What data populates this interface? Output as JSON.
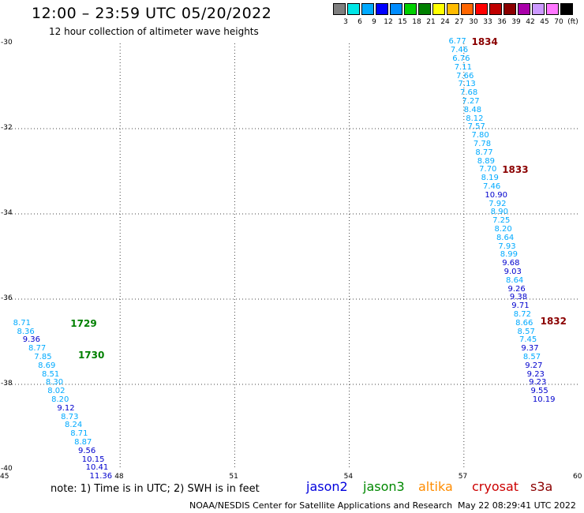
{
  "title": "12:00 – 23:59 UTC 05/20/2022",
  "subtitle": "12 hour collection of altimeter wave heights",
  "legend": {
    "colors": [
      "#7f7f7f",
      "#00e6e6",
      "#00aaff",
      "#0000ff",
      "#008cff",
      "#00d000",
      "#008000",
      "#ffff00",
      "#ffbb00",
      "#ff6600",
      "#ff0000",
      "#c00000",
      "#8b0000",
      "#aa00aa",
      "#cc99ff",
      "#ff77ff",
      "#000000"
    ],
    "labels": [
      "3",
      "6",
      "9",
      "12",
      "15",
      "18",
      "21",
      "24",
      "27",
      "30",
      "33",
      "36",
      "39",
      "42",
      "45",
      "70",
      "(ft)"
    ]
  },
  "axes": {
    "x_ticks": [
      "45",
      "48",
      "51",
      "54",
      "57",
      "60"
    ],
    "y_ticks": [
      "-30",
      "-32",
      "-34",
      "-36",
      "-38",
      "-40"
    ],
    "xlim": [
      45,
      60
    ],
    "ylim": [
      -40,
      -30
    ]
  },
  "chart_data": {
    "type": "scatter",
    "x_range": [
      45,
      60
    ],
    "y_range": [
      -40,
      -30
    ],
    "series": [
      {
        "name": "jason3",
        "color": "#008000",
        "track_labels": [
          {
            "text": "1729",
            "lon": 46.7,
            "lat": -36.55
          },
          {
            "text": "1730",
            "lon": 46.9,
            "lat": -37.3
          }
        ],
        "points": [
          {
            "lon": 45.2,
            "lat": -36.55,
            "v": "8.71",
            "c": "#00aaff"
          },
          {
            "lon": 45.3,
            "lat": -36.75,
            "v": "8.36",
            "c": "#00aaff"
          },
          {
            "lon": 45.45,
            "lat": -36.95,
            "v": "9.36",
            "c": "#0000cd"
          },
          {
            "lon": 45.6,
            "lat": -37.15,
            "v": "8.77",
            "c": "#00aaff"
          },
          {
            "lon": 45.75,
            "lat": -37.35,
            "v": "7.85",
            "c": "#00aaff"
          },
          {
            "lon": 45.85,
            "lat": -37.55,
            "v": "8.69",
            "c": "#00aaff"
          },
          {
            "lon": 45.95,
            "lat": -37.75,
            "v": "8.51",
            "c": "#00aaff"
          },
          {
            "lon": 46.05,
            "lat": -37.95,
            "v": "8.30",
            "c": "#00aaff"
          },
          {
            "lon": 46.1,
            "lat": -38.15,
            "v": "8.02",
            "c": "#00aaff"
          },
          {
            "lon": 46.2,
            "lat": -38.35,
            "v": "8.20",
            "c": "#00aaff"
          },
          {
            "lon": 46.35,
            "lat": -38.55,
            "v": "9.12",
            "c": "#0000cd"
          },
          {
            "lon": 46.45,
            "lat": -38.75,
            "v": "8.73",
            "c": "#00aaff"
          },
          {
            "lon": 46.55,
            "lat": -38.95,
            "v": "8.24",
            "c": "#00aaff"
          },
          {
            "lon": 46.7,
            "lat": -39.15,
            "v": "8.71",
            "c": "#00aaff"
          },
          {
            "lon": 46.8,
            "lat": -39.35,
            "v": "8.87",
            "c": "#00aaff"
          },
          {
            "lon": 46.9,
            "lat": -39.55,
            "v": "9.56",
            "c": "#0000cd"
          },
          {
            "lon": 47.0,
            "lat": -39.75,
            "v": "10.15",
            "c": "#0000cd"
          },
          {
            "lon": 47.1,
            "lat": -39.95,
            "v": "10.41",
            "c": "#0000cd"
          },
          {
            "lon": 47.2,
            "lat": -40.15,
            "v": "11.36",
            "c": "#0000cd"
          }
        ]
      },
      {
        "name": "cryosat",
        "color": "#8b0000",
        "track_labels": [
          {
            "text": "1834",
            "lon": 57.2,
            "lat": -29.95
          },
          {
            "text": "1833",
            "lon": 58.0,
            "lat": -32.95
          },
          {
            "text": "1832",
            "lon": 59.0,
            "lat": -36.5
          }
        ],
        "points": [
          {
            "lon": 56.6,
            "lat": -29.95,
            "v": "6.77",
            "c": "#00aaff"
          },
          {
            "lon": 56.65,
            "lat": -30.15,
            "v": "7.46",
            "c": "#00aaff"
          },
          {
            "lon": 56.7,
            "lat": -30.35,
            "v": "6.76",
            "c": "#00aaff"
          },
          {
            "lon": 56.75,
            "lat": -30.55,
            "v": "7.11",
            "c": "#00aaff"
          },
          {
            "lon": 56.8,
            "lat": -30.75,
            "v": "7.66",
            "c": "#00aaff"
          },
          {
            "lon": 56.85,
            "lat": -30.95,
            "v": "7.13",
            "c": "#00aaff"
          },
          {
            "lon": 56.9,
            "lat": -31.15,
            "v": "7.68",
            "c": "#00aaff"
          },
          {
            "lon": 56.95,
            "lat": -31.35,
            "v": "7.27",
            "c": "#00aaff"
          },
          {
            "lon": 57.0,
            "lat": -31.55,
            "v": "8.48",
            "c": "#00aaff"
          },
          {
            "lon": 57.05,
            "lat": -31.75,
            "v": "8.12",
            "c": "#00aaff"
          },
          {
            "lon": 57.1,
            "lat": -31.95,
            "v": "7.57",
            "c": "#00aaff"
          },
          {
            "lon": 57.2,
            "lat": -32.15,
            "v": "7.80",
            "c": "#00aaff"
          },
          {
            "lon": 57.25,
            "lat": -32.35,
            "v": "7.78",
            "c": "#00aaff"
          },
          {
            "lon": 57.3,
            "lat": -32.55,
            "v": "8.77",
            "c": "#00aaff"
          },
          {
            "lon": 57.35,
            "lat": -32.75,
            "v": "8.89",
            "c": "#00aaff"
          },
          {
            "lon": 57.4,
            "lat": -32.95,
            "v": "7.70",
            "c": "#00aaff"
          },
          {
            "lon": 57.45,
            "lat": -33.15,
            "v": "8.19",
            "c": "#00aaff"
          },
          {
            "lon": 57.5,
            "lat": -33.35,
            "v": "7.46",
            "c": "#00aaff"
          },
          {
            "lon": 57.55,
            "lat": -33.55,
            "v": "10.90",
            "c": "#0000cd"
          },
          {
            "lon": 57.65,
            "lat": -33.75,
            "v": "7.92",
            "c": "#00aaff"
          },
          {
            "lon": 57.7,
            "lat": -33.95,
            "v": "8.90",
            "c": "#00aaff"
          },
          {
            "lon": 57.75,
            "lat": -34.15,
            "v": "7.25",
            "c": "#00aaff"
          },
          {
            "lon": 57.8,
            "lat": -34.35,
            "v": "8.20",
            "c": "#00aaff"
          },
          {
            "lon": 57.85,
            "lat": -34.55,
            "v": "8.64",
            "c": "#00aaff"
          },
          {
            "lon": 57.9,
            "lat": -34.75,
            "v": "7.93",
            "c": "#00aaff"
          },
          {
            "lon": 57.95,
            "lat": -34.95,
            "v": "8.99",
            "c": "#00aaff"
          },
          {
            "lon": 58.0,
            "lat": -35.15,
            "v": "9.68",
            "c": "#0000cd"
          },
          {
            "lon": 58.05,
            "lat": -35.35,
            "v": "9.03",
            "c": "#0000cd"
          },
          {
            "lon": 58.1,
            "lat": -35.55,
            "v": "8.64",
            "c": "#00aaff"
          },
          {
            "lon": 58.15,
            "lat": -35.75,
            "v": "9.26",
            "c": "#0000cd"
          },
          {
            "lon": 58.2,
            "lat": -35.95,
            "v": "9.38",
            "c": "#0000cd"
          },
          {
            "lon": 58.25,
            "lat": -36.15,
            "v": "9.71",
            "c": "#0000cd"
          },
          {
            "lon": 58.3,
            "lat": -36.35,
            "v": "8.72",
            "c": "#00aaff"
          },
          {
            "lon": 58.35,
            "lat": -36.55,
            "v": "8.66",
            "c": "#00aaff"
          },
          {
            "lon": 58.4,
            "lat": -36.75,
            "v": "8.57",
            "c": "#00aaff"
          },
          {
            "lon": 58.45,
            "lat": -36.95,
            "v": "7.45",
            "c": "#00aaff"
          },
          {
            "lon": 58.5,
            "lat": -37.15,
            "v": "9.37",
            "c": "#0000cd"
          },
          {
            "lon": 58.55,
            "lat": -37.35,
            "v": "8.57",
            "c": "#00aaff"
          },
          {
            "lon": 58.6,
            "lat": -37.55,
            "v": "9.27",
            "c": "#0000cd"
          },
          {
            "lon": 58.65,
            "lat": -37.75,
            "v": "9.23",
            "c": "#0000cd"
          },
          {
            "lon": 58.7,
            "lat": -37.95,
            "v": "9.23",
            "c": "#0000cd"
          },
          {
            "lon": 58.75,
            "lat": -38.15,
            "v": "9.55",
            "c": "#0000cd"
          },
          {
            "lon": 58.8,
            "lat": -38.35,
            "v": "10.19",
            "c": "#0000cd"
          }
        ]
      }
    ]
  },
  "note": "note:  1) Time is in UTC;  2) SWH is in feet",
  "satellites": [
    {
      "name": "jason2",
      "color": "#0000dd"
    },
    {
      "name": "jason3",
      "color": "#008800"
    },
    {
      "name": "altika",
      "color": "#ff8c00"
    },
    {
      "name": "cryosat",
      "color": "#cc0000"
    },
    {
      "name": "s3a",
      "color": "#8b0000"
    }
  ],
  "credit": "NOAA/NESDIS Center for Satellite Applications and Research",
  "timestamp": "May 22 08:29:41 UTC 2022"
}
